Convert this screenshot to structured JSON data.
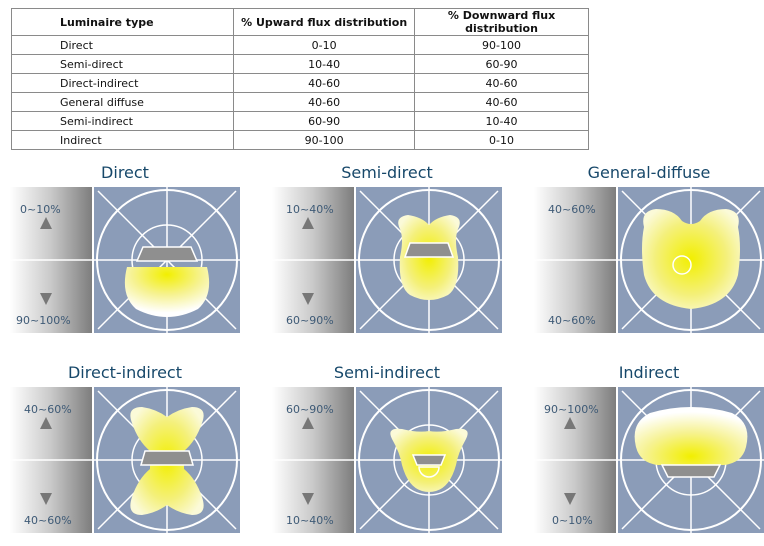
{
  "table": {
    "headers": [
      "Luminaire type",
      "% Upward flux distribution",
      "% Downward flux distribution"
    ],
    "rows": [
      [
        "Direct",
        "0-10",
        "90-100"
      ],
      [
        "Semi-direct",
        "10-40",
        "60-90"
      ],
      [
        "Direct-indirect",
        "40-60",
        "40-60"
      ],
      [
        "General diffuse",
        "40-60",
        "40-60"
      ],
      [
        "Semi-indirect",
        "60-90",
        "10-40"
      ],
      [
        "Indirect",
        "90-100",
        "0-10"
      ]
    ]
  },
  "panels": [
    {
      "title": "Direct",
      "upper": "0~10%",
      "lower": "90~100%"
    },
    {
      "title": "Semi-direct",
      "upper": "10~40%",
      "lower": "60~90%"
    },
    {
      "title": "General-diffuse",
      "upper": "40~60%",
      "lower": "40~60%"
    },
    {
      "title": "Direct-indirect",
      "upper": "40~60%",
      "lower": "40~60%"
    },
    {
      "title": "Semi-indirect",
      "upper": "60~90%",
      "lower": "10~40%"
    },
    {
      "title": "Indirect",
      "upper": "90~100%",
      "lower": "0~10%"
    }
  ],
  "colors": {
    "title": "#17486a",
    "panel_bg": "#8b9cb8",
    "light": "#f4f07a",
    "luminaire": "#8f8f8f"
  }
}
